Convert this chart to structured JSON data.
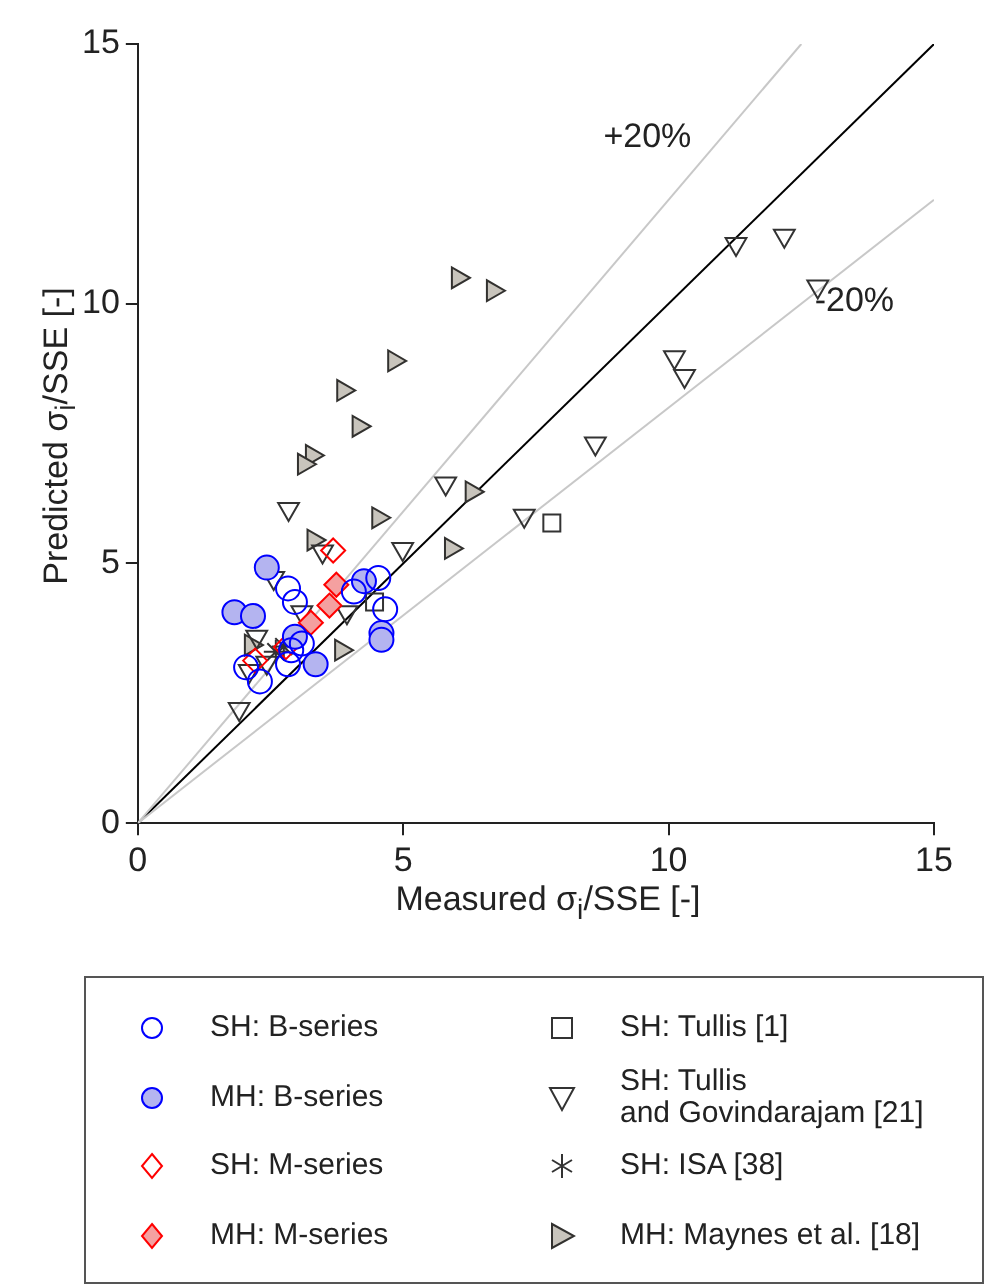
{
  "chart_data": {
    "type": "scatter",
    "xlabel": "Measured σ$_{i}$/SSE [-]",
    "ylabel": "Predicted σ$_{i}$/SSE [-]",
    "xlim": [
      0,
      15
    ],
    "ylim": [
      0,
      15
    ],
    "xticks": [
      0,
      5,
      10,
      15
    ],
    "yticks": [
      0,
      5,
      10,
      15
    ],
    "grid": false,
    "legend": "bottom",
    "annotations": [
      "+20%",
      "-20%"
    ],
    "series": [
      {
        "type": "line",
        "color": "#c8c8c8",
        "x": [
          0,
          12.5
        ],
        "values": [
          0,
          15
        ],
        "marker": "none"
      },
      {
        "type": "line",
        "color": "#c8c8c8",
        "x": [
          0,
          15
        ],
        "values": [
          0,
          12
        ],
        "marker": "none"
      },
      {
        "type": "line",
        "color": "#000000",
        "x": [
          0,
          15
        ],
        "values": [
          0,
          15
        ],
        "marker": "none"
      },
      {
        "name": "SH: B-series",
        "color": "#0000ff",
        "marker": "circle",
        "x": [
          2.83,
          2.96,
          4.53,
          4.07,
          4.66,
          3.09,
          2.89,
          2.04,
          2.3,
          2.83
        ],
        "values": [
          4.52,
          4.26,
          4.72,
          4.46,
          4.12,
          3.46,
          3.33,
          3.0,
          2.73,
          3.06
        ]
      },
      {
        "name": "MH: B-series",
        "color": "#b4b4f0",
        "marker": "circle",
        "x": [
          1.82,
          2.43,
          2.17,
          4.26,
          4.59,
          4.59,
          3.35,
          2.96
        ],
        "values": [
          4.06,
          4.92,
          3.99,
          4.66,
          3.66,
          3.53,
          3.06,
          3.59
        ]
      },
      {
        "name": "SH: M-series",
        "color": "#ff0000",
        "marker": "diamond",
        "x": [
          3.68,
          2.79,
          2.21
        ],
        "values": [
          5.25,
          3.39,
          3.13
        ]
      },
      {
        "name": "MH: M-series",
        "color": "#f4a0a0",
        "marker": "diamond",
        "x": [
          3.74,
          3.61,
          3.26
        ],
        "values": [
          4.59,
          4.19,
          3.86
        ]
      },
      {
        "name": "SH: Tullis [1]",
        "color": "#333333",
        "marker": "square",
        "x": [
          7.8,
          4.46
        ],
        "values": [
          5.78,
          4.26
        ]
      },
      {
        "name": "SH: Tullis\nand Govindarajam [21]",
        "color": "#333333",
        "marker": "triangle-down",
        "x": [
          11.27,
          12.18,
          12.81,
          10.11,
          10.3,
          8.62,
          7.28,
          5.8,
          2.84,
          4.99,
          3.48,
          2.56,
          3.94,
          3.09,
          2.24,
          2.1,
          2.43,
          1.91
        ],
        "values": [
          11.15,
          11.31,
          10.33,
          8.97,
          8.61,
          7.31,
          5.92,
          6.54,
          6.05,
          5.28,
          5.23,
          4.72,
          4.06,
          4.06,
          3.59,
          2.93,
          3.09,
          2.2
        ]
      },
      {
        "name": "SH: ISA [38]",
        "color": "#333333",
        "marker": "cross",
        "x": [
          2.6,
          2.75
        ],
        "values": [
          3.3,
          3.4
        ]
      },
      {
        "name": "MH: Maynes et al. [18]",
        "color": "#c8c4bc",
        "marker": "triangle-right",
        "x": [
          6.03,
          6.69,
          4.83,
          3.87,
          4.16,
          3.28,
          3.13,
          4.53,
          6.29,
          5.9,
          3.31,
          3.83,
          2.13
        ],
        "values": [
          10.5,
          10.25,
          8.9,
          8.33,
          7.64,
          7.08,
          6.91,
          5.88,
          6.38,
          5.29,
          5.45,
          3.33,
          3.43
        ]
      }
    ]
  }
}
